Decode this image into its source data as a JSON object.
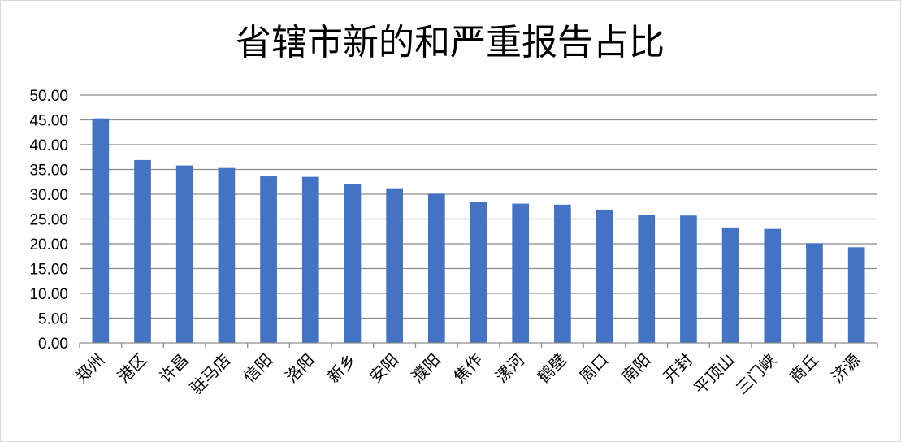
{
  "chart_data": {
    "type": "bar",
    "title": "省辖市新的和严重报告占比",
    "xlabel": "",
    "ylabel": "",
    "ylim": [
      0,
      50
    ],
    "ytick_step": 5,
    "ytick_labels": [
      "0.00",
      "5.00",
      "10.00",
      "15.00",
      "20.00",
      "25.00",
      "30.00",
      "35.00",
      "40.00",
      "45.00",
      "50.00"
    ],
    "grid": true,
    "legend": "none",
    "bar_color": "#4472c4",
    "categories": [
      "郑州",
      "港区",
      "许昌",
      "驻马店",
      "信阳",
      "洛阳",
      "新乡",
      "安阳",
      "濮阳",
      "焦作",
      "漯河",
      "鹤壁",
      "周口",
      "南阳",
      "开封",
      "平顶山",
      "三门峡",
      "商丘",
      "济源"
    ],
    "values": [
      45.3,
      36.9,
      35.8,
      35.3,
      33.6,
      33.5,
      32.0,
      31.2,
      30.1,
      28.4,
      28.1,
      27.9,
      26.9,
      25.9,
      25.7,
      23.3,
      23.0,
      20.1,
      19.3
    ]
  }
}
